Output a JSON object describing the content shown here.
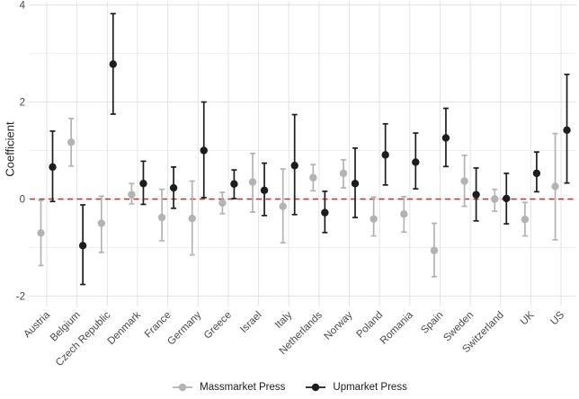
{
  "figure": {
    "background": "#ffffff",
    "colors": {
      "massmarket": "#b3b3b3",
      "upmarket": "#1d1d1d",
      "refline": "#ee1b1b",
      "grid_major": "#e3e3e3",
      "grid_minor": "#f0f0f0",
      "tick_text": "#474747",
      "axis_title_text": "#1f1f1f"
    }
  },
  "chart_data": {
    "type": "pointrange",
    "title": "",
    "xlabel": "",
    "ylabel": "Coefficient",
    "ylim": [
      -2.28,
      4.1
    ],
    "yticks": [
      -2,
      0,
      2,
      4
    ],
    "yticks_minor": [
      -1,
      1,
      3
    ],
    "grid": true,
    "legend_position": "bottom",
    "refline": {
      "y": 0,
      "style": "dashed",
      "color": "#ee1b1b"
    },
    "categories": [
      "Austria",
      "Belgium",
      "Czech Republic",
      "Denmark",
      "France",
      "Germany",
      "Greece",
      "Israel",
      "Italy",
      "Netherlands",
      "Norway",
      "Poland",
      "Romania",
      "Spain",
      "Sweden",
      "Switzerland",
      "UK",
      "US"
    ],
    "series": [
      {
        "name": "Massmarket Press",
        "color": "#b3b3b3",
        "est": [
          -0.7,
          1.17,
          -0.5,
          0.09,
          -0.38,
          -0.4,
          -0.08,
          0.35,
          -0.15,
          0.44,
          0.53,
          -0.41,
          -0.31,
          -1.06,
          0.37,
          0.0,
          -0.42,
          0.26
        ],
        "lo": [
          -1.37,
          0.68,
          -1.1,
          -0.1,
          -0.86,
          -1.15,
          -0.3,
          -0.27,
          -0.9,
          0.17,
          0.23,
          -0.76,
          -0.68,
          -1.6,
          -0.15,
          -0.25,
          -0.76,
          -0.84
        ],
        "hi": [
          -0.03,
          1.66,
          0.06,
          0.32,
          0.2,
          0.37,
          0.14,
          0.94,
          0.62,
          0.71,
          0.81,
          0.04,
          0.05,
          -0.5,
          0.9,
          0.2,
          -0.07,
          1.35
        ]
      },
      {
        "name": "Upmarket Press",
        "color": "#1d1d1d",
        "est": [
          0.66,
          -0.96,
          2.78,
          0.32,
          0.23,
          1.0,
          0.31,
          0.18,
          0.69,
          -0.28,
          0.32,
          0.91,
          0.76,
          1.26,
          0.09,
          0.01,
          0.53,
          1.42
        ],
        "lo": [
          -0.05,
          -1.76,
          1.75,
          -0.11,
          -0.19,
          0.03,
          0.01,
          -0.34,
          -0.32,
          -0.69,
          -0.38,
          0.29,
          0.21,
          0.67,
          -0.45,
          -0.51,
          0.15,
          0.33
        ],
        "hi": [
          1.4,
          -0.12,
          3.82,
          0.78,
          0.66,
          2.0,
          0.6,
          0.74,
          1.74,
          0.16,
          1.05,
          1.55,
          1.36,
          1.87,
          0.64,
          0.53,
          0.97,
          2.57
        ]
      }
    ]
  }
}
